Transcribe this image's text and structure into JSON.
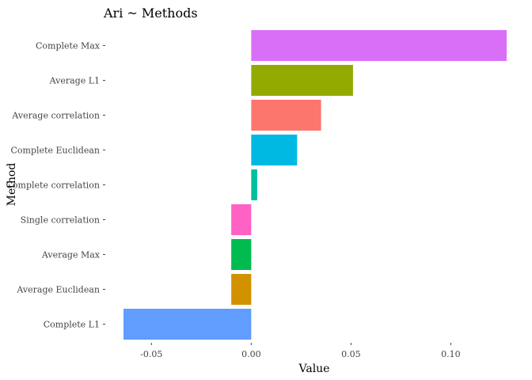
{
  "chart_data": {
    "type": "bar",
    "orientation": "horizontal",
    "title": "Ari ~ Methods",
    "xlabel": "Value",
    "ylabel": "Method",
    "xlim": [
      -0.064,
      0.128
    ],
    "x_ticks": [
      -0.05,
      0.0,
      0.05,
      0.1
    ],
    "x_tick_labels": [
      "-0.05",
      "0.00",
      "0.05",
      "0.10"
    ],
    "grid": false,
    "legend": "none",
    "categories": [
      "Complete Max",
      "Average L1",
      "Average correlation",
      "Complete Euclidean",
      "Complete correlation",
      "Single correlation",
      "Average Max",
      "Average Euclidean",
      "Complete L1"
    ],
    "values": [
      0.128,
      0.051,
      0.035,
      0.023,
      0.003,
      -0.01,
      -0.01,
      -0.01,
      -0.064
    ],
    "colors": [
      "#da6ff7",
      "#93aa00",
      "#fd766e",
      "#00b9e3",
      "#00bf9c",
      "#ff61c4",
      "#00bb4e",
      "#d29200",
      "#619cff"
    ]
  }
}
